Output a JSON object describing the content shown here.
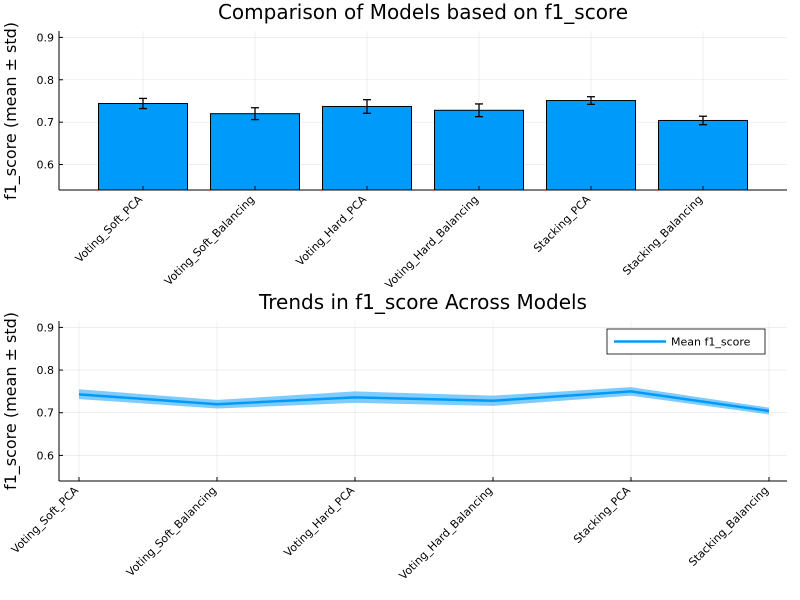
{
  "chart_data": [
    {
      "type": "bar",
      "title": "Comparison of Models based on f1_score",
      "xlabel": "",
      "ylabel": "f1_score (mean ± std)",
      "ylim": [
        0.54,
        0.915
      ],
      "yticks": [
        0.6,
        0.7,
        0.8,
        0.9
      ],
      "ytick_labels": [
        "0.6",
        "0.7",
        "0.8",
        "0.9"
      ],
      "grid": true,
      "color": "#009AFA",
      "categories": [
        "Voting_Soft_PCA",
        "Voting_Soft_Balancing",
        "Voting_Hard_PCA",
        "Voting_Hard_Balancing",
        "Stacking_PCA",
        "Stacking_Balancing"
      ],
      "values": [
        0.744,
        0.72,
        0.737,
        0.728,
        0.751,
        0.704
      ],
      "errors": [
        0.012,
        0.014,
        0.016,
        0.015,
        0.009,
        0.01
      ]
    },
    {
      "type": "line",
      "title": "Trends in f1_score Across Models",
      "xlabel": "",
      "ylabel": "f1_score (mean ± std)",
      "ylim": [
        0.54,
        0.915
      ],
      "yticks": [
        0.6,
        0.7,
        0.8,
        0.9
      ],
      "ytick_labels": [
        "0.6",
        "0.7",
        "0.8",
        "0.9"
      ],
      "grid": true,
      "legend_position": "top-right",
      "color": "#009AFA",
      "categories": [
        "Voting_Soft_PCA",
        "Voting_Soft_Balancing",
        "Voting_Hard_PCA",
        "Voting_Hard_Balancing",
        "Stacking_PCA",
        "Stacking_Balancing"
      ],
      "series": [
        {
          "name": "Mean f1_score",
          "values": [
            0.743,
            0.72,
            0.736,
            0.728,
            0.75,
            0.704
          ],
          "band_lower": [
            0.732,
            0.71,
            0.723,
            0.716,
            0.74,
            0.696
          ],
          "band_upper": [
            0.755,
            0.73,
            0.75,
            0.74,
            0.76,
            0.712
          ]
        }
      ]
    }
  ]
}
